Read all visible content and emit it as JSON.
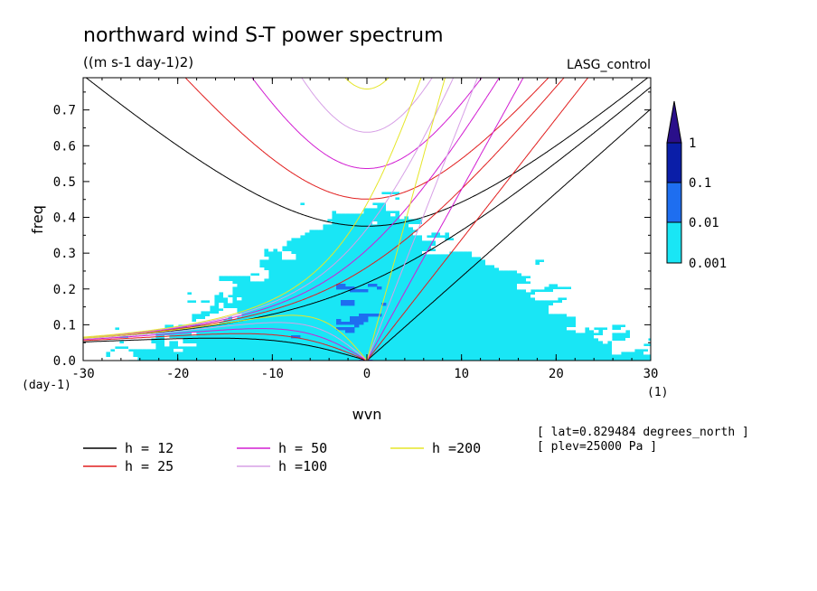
{
  "title": "northward wind S-T power spectrum",
  "units": "((m s-1 day-1)2)",
  "run_label": "LASG_control",
  "annotations": [
    "[ lat=0.829484 degrees_north ]",
    "[ plev=25000 Pa ]"
  ],
  "chart_data": {
    "type": "heatmap",
    "xlabel": "wvn",
    "ylabel": "freq",
    "x_unit": "(1)",
    "y_unit": "(day-1)",
    "xlim": [
      -30,
      30
    ],
    "ylim": [
      0,
      0.79
    ],
    "x_ticks": [
      "-30",
      "-20",
      "-10",
      "0",
      "10",
      "20",
      "30"
    ],
    "x_tick_values": [
      -30,
      -20,
      -10,
      0,
      10,
      20,
      30
    ],
    "y_ticks": [
      "0.0",
      "0.1",
      "0.2",
      "0.3",
      "0.4",
      "0.5",
      "0.6",
      "0.7"
    ],
    "y_tick_values": [
      0,
      0.1,
      0.2,
      0.3,
      0.4,
      0.5,
      0.6,
      0.7
    ],
    "colorbar": {
      "labels": [
        "1",
        "0.1",
        "0.01",
        "0.001"
      ],
      "levels": [
        1,
        0.1,
        0.01,
        0.001
      ],
      "colors": [
        "#2a0f8a",
        "#0a1ea8",
        "#1e6ef0",
        "#19e6f5",
        "#ffffff"
      ]
    },
    "dispersion_curves": [
      {
        "name": "h = 12",
        "h": 12,
        "color": "#000000"
      },
      {
        "name": "h = 25",
        "h": 25,
        "color": "#e11e1e"
      },
      {
        "name": "h = 50",
        "h": 50,
        "color": "#d21ed2"
      },
      {
        "name": "h =100",
        "h": 100,
        "color": "#d7a0e6"
      },
      {
        "name": "h =200",
        "h": 200,
        "color": "#e6e628"
      }
    ]
  }
}
